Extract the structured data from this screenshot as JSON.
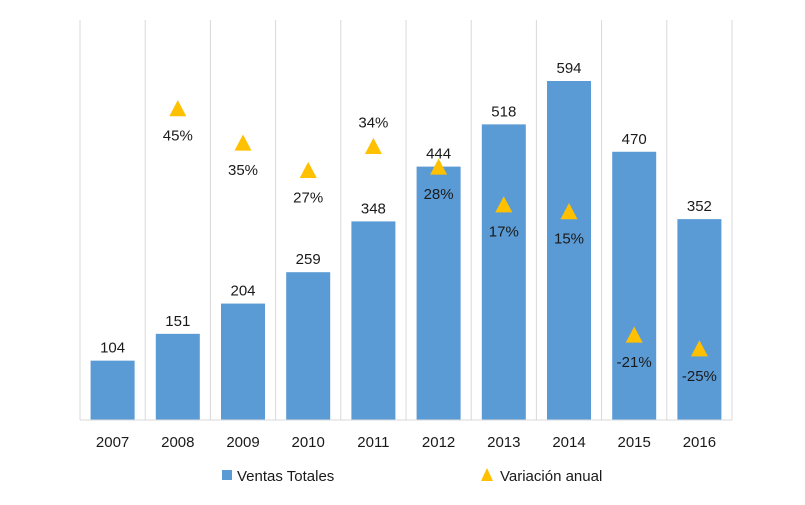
{
  "chart_data": {
    "type": "bar",
    "title": "",
    "xlabel": "",
    "ylabel": "",
    "categories": [
      "2007",
      "2008",
      "2009",
      "2010",
      "2011",
      "2012",
      "2013",
      "2014",
      "2015",
      "2016"
    ],
    "series": [
      {
        "name": "Ventas Totales",
        "type": "bar",
        "color": "#5b9bd5",
        "values": [
          104,
          151,
          204,
          259,
          348,
          444,
          518,
          594,
          470,
          352
        ],
        "labels": [
          "104",
          "151",
          "204",
          "259",
          "348",
          "444",
          "518",
          "594",
          "470",
          "352"
        ]
      },
      {
        "name": "Variación anual",
        "type": "scatter",
        "marker": "triangle",
        "color": "#ffc000",
        "values": [
          null,
          45,
          35,
          27,
          34,
          28,
          17,
          15,
          -21,
          -25
        ],
        "labels": [
          "",
          "45%",
          "35%",
          "27%",
          "34%",
          "28%",
          "17%",
          "15%",
          "-21%",
          "-25%"
        ]
      }
    ],
    "grid": "vertical",
    "legend": "bottom"
  }
}
